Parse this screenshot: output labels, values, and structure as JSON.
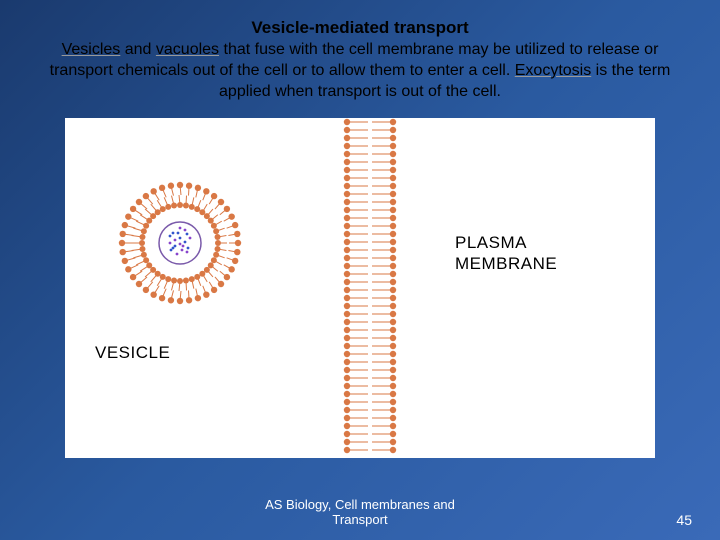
{
  "title": "Vesicle-mediated transport",
  "paragraph": {
    "link1": "Vesicles",
    "text1": " and ",
    "link2": "vacuoles",
    "text2": " that fuse with the cell membrane may be utilized to release or transport chemicals out of the cell or to allow them to enter a cell. ",
    "link3": "Exocytosis",
    "text3": " is the term applied when transport is out of the cell."
  },
  "labels": {
    "vesicle": "VESICLE",
    "plasma_membrane_line1": "PLASMA",
    "plasma_membrane_line2": "MEMBRANE"
  },
  "footer": {
    "line1": "AS Biology, Cell membranes and",
    "line2": "Transport"
  },
  "page_number": "45",
  "colors": {
    "lipid": "#d97845",
    "lipid_dark": "#c76530",
    "inner_purple": "#7a5aaa",
    "dot_blue": "#3355cc",
    "dot_purple": "#8844cc"
  }
}
